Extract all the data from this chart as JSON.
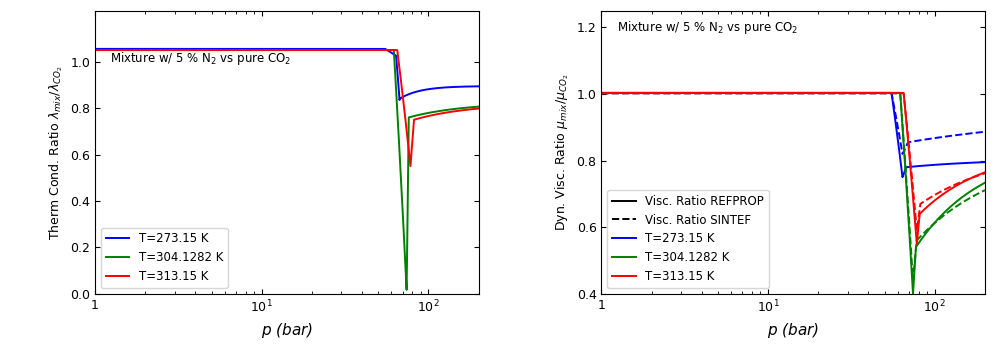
{
  "title_left": "Mixture w/ 5 % N$_2$ vs pure CO$_2$",
  "title_right": "Mixture w/ 5 % N$_2$ vs pure CO$_2$",
  "ylabel_left": "Therm Cond. Ratio $\\lambda_{mix}/\\lambda_{CO_2}$",
  "ylabel_right": "Dyn. Visc. Ratio $\\mu_{mix}/\\mu_{CO_2}$",
  "xlabel": "$p$ (bar)",
  "colors": [
    "blue",
    "green",
    "red"
  ],
  "temps": [
    "T=273.15 K",
    "T=304.1282 K",
    "T=313.15 K"
  ],
  "T_values": [
    273.15,
    304.1282,
    313.15
  ],
  "p_min": 1,
  "p_max": 200,
  "ylim_left": [
    0,
    1.22
  ],
  "ylim_right": [
    0.4,
    1.25
  ],
  "legend_solid": "Visc. Ratio REFPROP",
  "legend_dashed": "Visc. Ratio SINTEF",
  "yticks_left": [
    0.0,
    0.2,
    0.4,
    0.6,
    0.8,
    1.0
  ],
  "yticks_right": [
    0.4,
    0.6,
    0.8,
    1.0,
    1.2
  ]
}
